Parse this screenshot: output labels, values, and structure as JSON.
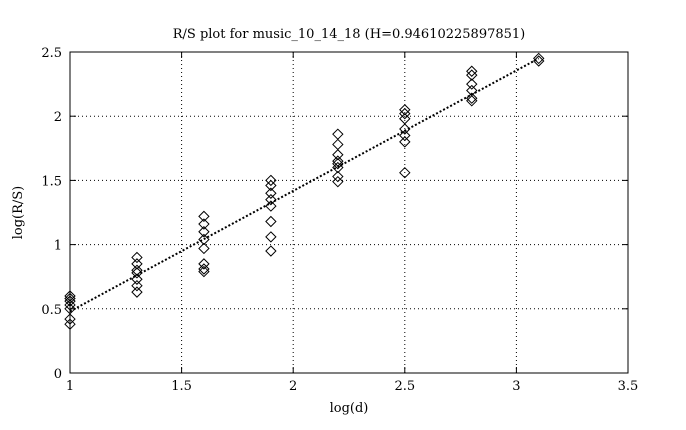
{
  "chart_data": {
    "type": "scatter",
    "title": "R/S plot for music_10_14_18 (H=0.94610225897851)",
    "xlabel": "log(d)",
    "ylabel": "log(R/S)",
    "xlim": [
      1,
      3.5
    ],
    "ylim": [
      0,
      2.5
    ],
    "x_ticks": [
      1,
      1.5,
      2,
      2.5,
      3,
      3.5
    ],
    "x_tick_labels": [
      "1",
      "1.5",
      "2",
      "2.5",
      "3",
      "3.5"
    ],
    "y_ticks": [
      0,
      0.5,
      1,
      1.5,
      2,
      2.5
    ],
    "y_tick_labels": [
      "0",
      "0.5",
      "1",
      "1.5",
      "2",
      "2.5"
    ],
    "grid": true,
    "legend": "none",
    "marker": "diamond",
    "series": [
      {
        "type": "scatter",
        "points": [
          [
            1.0,
            0.38
          ],
          [
            1.0,
            0.42
          ],
          [
            1.0,
            0.5
          ],
          [
            1.0,
            0.53
          ],
          [
            1.0,
            0.56
          ],
          [
            1.0,
            0.58
          ],
          [
            1.0,
            0.6
          ],
          [
            1.3,
            0.63
          ],
          [
            1.3,
            0.68
          ],
          [
            1.3,
            0.73
          ],
          [
            1.3,
            0.78
          ],
          [
            1.3,
            0.8
          ],
          [
            1.3,
            0.85
          ],
          [
            1.3,
            0.9
          ],
          [
            1.6,
            0.79
          ],
          [
            1.6,
            0.81
          ],
          [
            1.6,
            0.85
          ],
          [
            1.6,
            0.97
          ],
          [
            1.6,
            1.04
          ],
          [
            1.6,
            1.1
          ],
          [
            1.6,
            1.16
          ],
          [
            1.6,
            1.22
          ],
          [
            1.9,
            0.95
          ],
          [
            1.9,
            1.06
          ],
          [
            1.9,
            1.18
          ],
          [
            1.9,
            1.3
          ],
          [
            1.9,
            1.35
          ],
          [
            1.9,
            1.4
          ],
          [
            1.9,
            1.46
          ],
          [
            1.9,
            1.5
          ],
          [
            2.2,
            1.49
          ],
          [
            2.2,
            1.53
          ],
          [
            2.2,
            1.6
          ],
          [
            2.2,
            1.63
          ],
          [
            2.2,
            1.65
          ],
          [
            2.2,
            1.7
          ],
          [
            2.2,
            1.78
          ],
          [
            2.2,
            1.86
          ],
          [
            2.5,
            1.56
          ],
          [
            2.5,
            1.8
          ],
          [
            2.5,
            1.85
          ],
          [
            2.5,
            1.9
          ],
          [
            2.5,
            1.98
          ],
          [
            2.5,
            2.02
          ],
          [
            2.5,
            2.05
          ],
          [
            2.8,
            2.12
          ],
          [
            2.8,
            2.14
          ],
          [
            2.8,
            2.2
          ],
          [
            2.8,
            2.25
          ],
          [
            2.8,
            2.32
          ],
          [
            2.8,
            2.35
          ],
          [
            3.1,
            2.43
          ],
          [
            3.1,
            2.45
          ]
        ]
      },
      {
        "type": "line",
        "style": "dotted",
        "points": [
          [
            1.0,
            0.48
          ],
          [
            3.1,
            2.45
          ]
        ]
      }
    ]
  }
}
